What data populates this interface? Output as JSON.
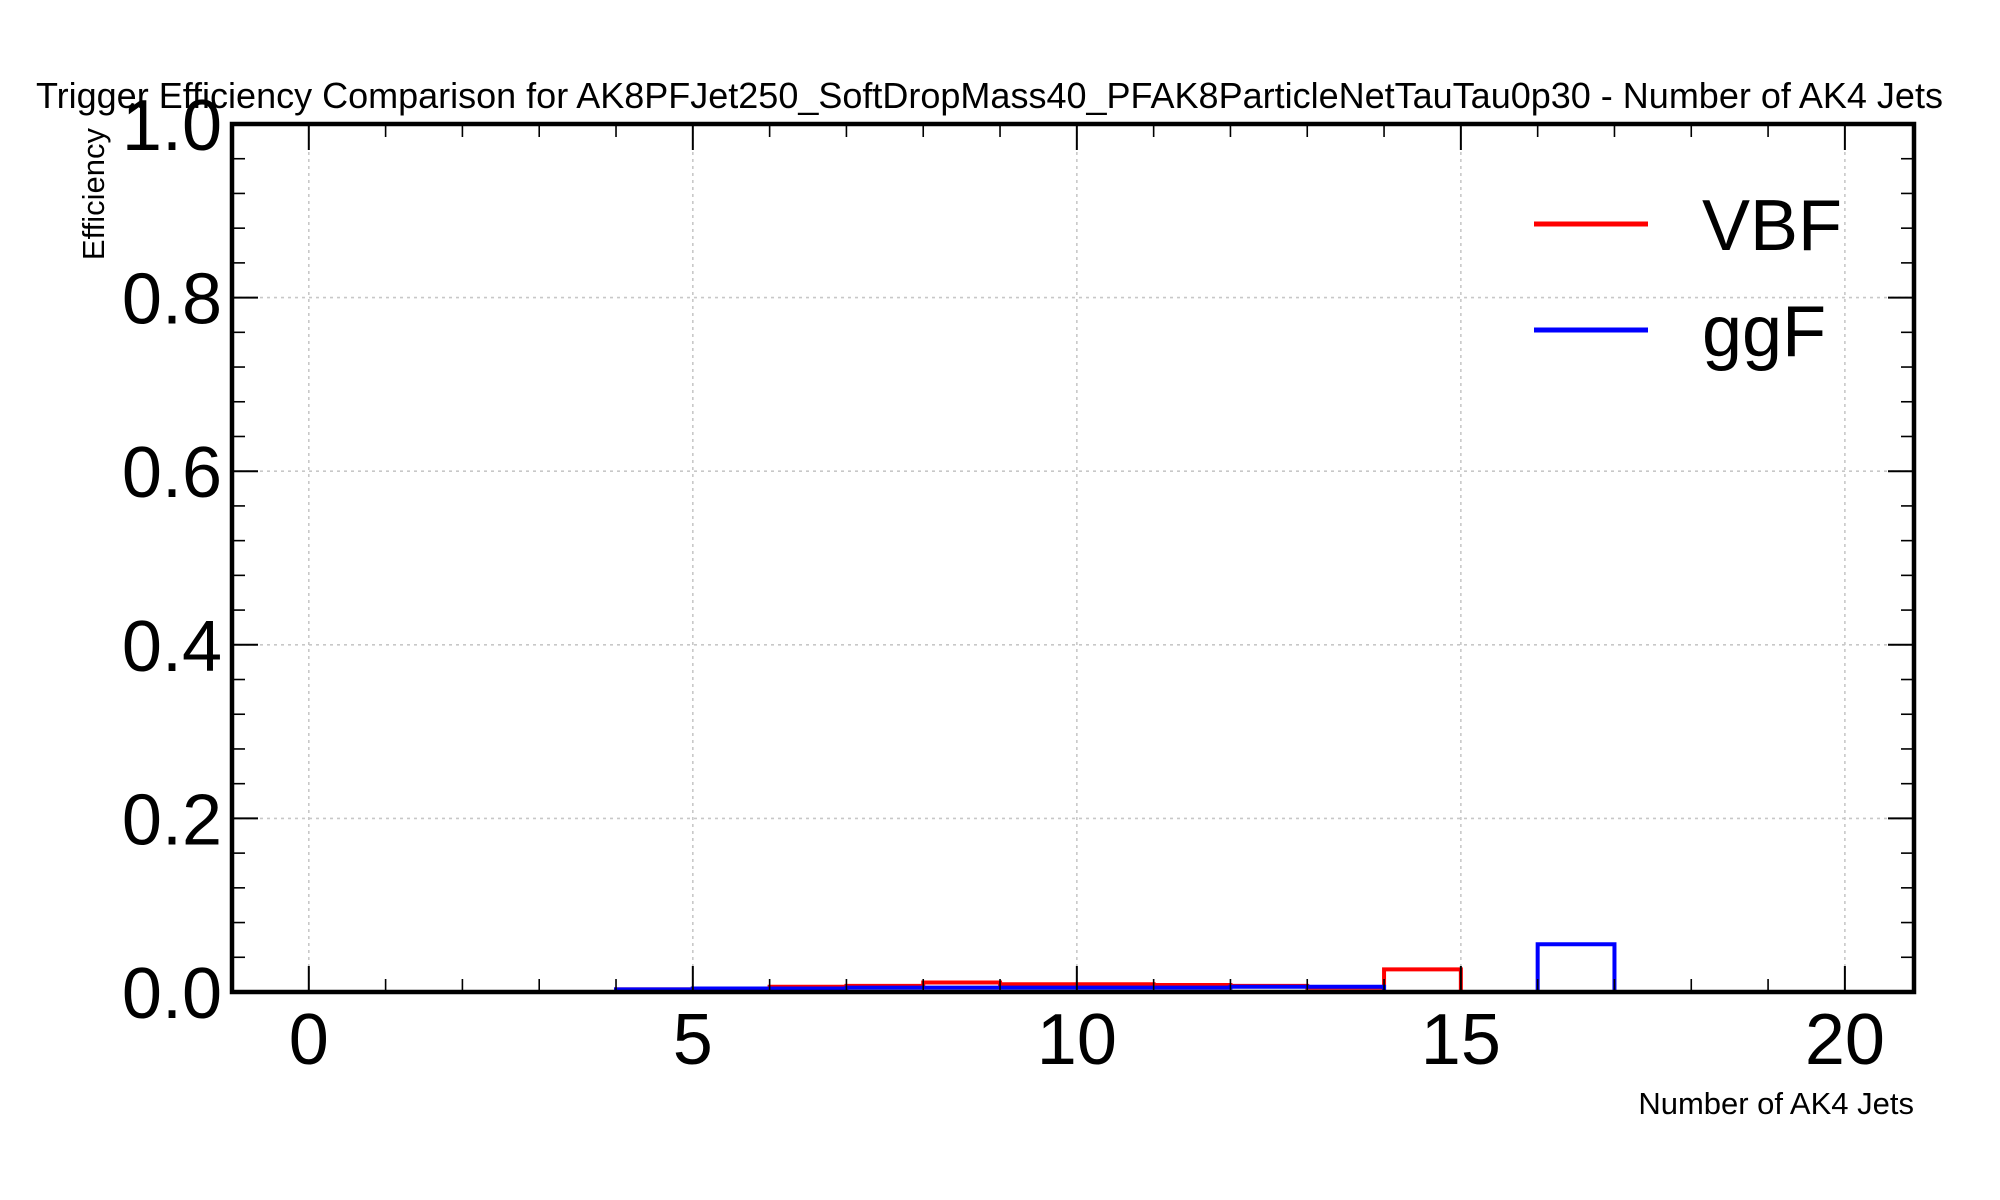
{
  "chart_data": {
    "type": "line",
    "title": "Trigger Efficiency Comparison for AK8PFJet250_SoftDropMass40_PFAK8ParticleNetTauTau0p30 - Number of AK4 Jets",
    "xlabel": "Number of AK4 Jets",
    "ylabel": "Efficiency",
    "xlim": [
      -1,
      20.9
    ],
    "ylim": [
      0,
      1.0
    ],
    "xticks": [
      0,
      5,
      10,
      15,
      20
    ],
    "xtick_labels": [
      "0",
      "5",
      "10",
      "15",
      "20"
    ],
    "yticks": [
      0,
      0.2,
      0.4,
      0.6,
      0.8,
      1.0
    ],
    "ytick_labels": [
      "0.0",
      "0.2",
      "0.4",
      "0.6",
      "0.8",
      "1.0"
    ],
    "grid": true,
    "legend_position": "top-right",
    "bin_edges": [
      0,
      1,
      2,
      3,
      4,
      5,
      6,
      7,
      8,
      9,
      10,
      11,
      12,
      13,
      14,
      15,
      16,
      17,
      18,
      19,
      20
    ],
    "series": [
      {
        "name": "VBF",
        "color": "#ff0000",
        "values": [
          0,
          0,
          0,
          0,
          0.003,
          0.004,
          0.006,
          0.007,
          0.011,
          0.009,
          0.009,
          0.008,
          0.007,
          0.005,
          0.026,
          0,
          0,
          0,
          0,
          0
        ]
      },
      {
        "name": "ggF",
        "color": "#0000ff",
        "values": [
          0,
          0,
          0,
          0,
          0.003,
          0.004,
          0.004,
          0.005,
          0.005,
          0.005,
          0.005,
          0.005,
          0.006,
          0.006,
          0,
          0,
          0.055,
          0,
          0,
          0
        ]
      }
    ]
  }
}
